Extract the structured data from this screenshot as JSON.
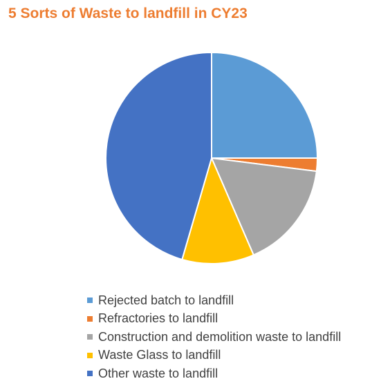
{
  "chart_data": {
    "type": "pie",
    "title": "5  Sorts of Waste to landfill in CY23",
    "title_color": "#ED7D31",
    "legend_position": "bottom",
    "slices": [
      {
        "label": "Rejected batch to landfill",
        "value": 25.0,
        "color": "#5B9BD5"
      },
      {
        "label": "Refractories to landfill",
        "value": 2.0,
        "color": "#ED7D31"
      },
      {
        "label": "Construction and demolition waste to landfill",
        "value": 16.5,
        "color": "#A5A5A5"
      },
      {
        "label": "Waste Glass to landfill",
        "value": 11.0,
        "color": "#FFC000"
      },
      {
        "label": "Other waste to landfill",
        "value": 45.5,
        "color": "#4472C4"
      }
    ]
  }
}
